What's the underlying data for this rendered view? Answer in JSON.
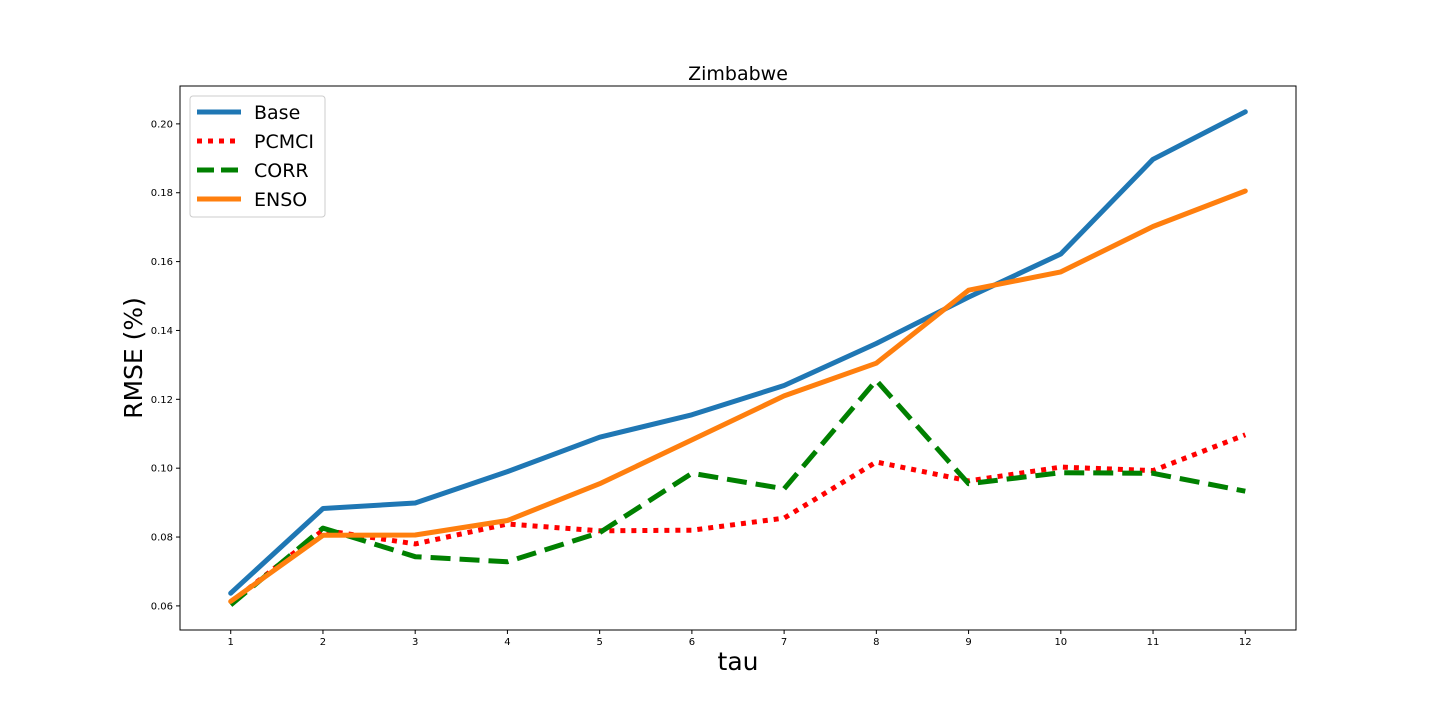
{
  "chart_data": {
    "type": "line",
    "title": "Zimbabwe",
    "xlabel": "tau",
    "ylabel": "RMSE (%)",
    "x": [
      1,
      2,
      3,
      4,
      5,
      6,
      7,
      8,
      9,
      10,
      11,
      12
    ],
    "xlim": [
      0.45,
      12.55
    ],
    "ylim": [
      0.053,
      0.211
    ],
    "yticks": [
      0.06,
      0.08,
      0.1,
      0.12,
      0.14,
      0.16,
      0.18,
      0.2
    ],
    "ytick_labels": [
      "0.06",
      "0.08",
      "0.10",
      "0.12",
      "0.14",
      "0.16",
      "0.18",
      "0.20"
    ],
    "xtick_labels": [
      "1",
      "2",
      "3",
      "4",
      "5",
      "6",
      "7",
      "8",
      "9",
      "10",
      "11",
      "12"
    ],
    "grid": false,
    "legend_position": "top-left",
    "series": [
      {
        "name": "Base",
        "color": "#1f77b4",
        "style": "solid",
        "values": [
          0.0637,
          0.0883,
          0.0899,
          0.099,
          0.109,
          0.1155,
          0.124,
          0.1362,
          0.1497,
          0.1622,
          0.1897,
          0.2035
        ]
      },
      {
        "name": "PCMCI",
        "color": "#ff0000",
        "style": "dotted",
        "values": [
          0.061,
          0.082,
          0.078,
          0.0838,
          0.0818,
          0.082,
          0.0855,
          0.1018,
          0.0963,
          0.1003,
          0.0993,
          0.1097
        ]
      },
      {
        "name": "CORR",
        "color": "#008000",
        "style": "dashed",
        "values": [
          0.0603,
          0.0826,
          0.0743,
          0.0728,
          0.0813,
          0.0985,
          0.094,
          0.1255,
          0.0955,
          0.0987,
          0.0985,
          0.0933
        ]
      },
      {
        "name": "ENSO",
        "color": "#ff7f0e",
        "style": "solid",
        "values": [
          0.0613,
          0.0805,
          0.0806,
          0.0848,
          0.0955,
          0.1082,
          0.121,
          0.1305,
          0.1517,
          0.157,
          0.1702,
          0.1805
        ]
      }
    ]
  }
}
